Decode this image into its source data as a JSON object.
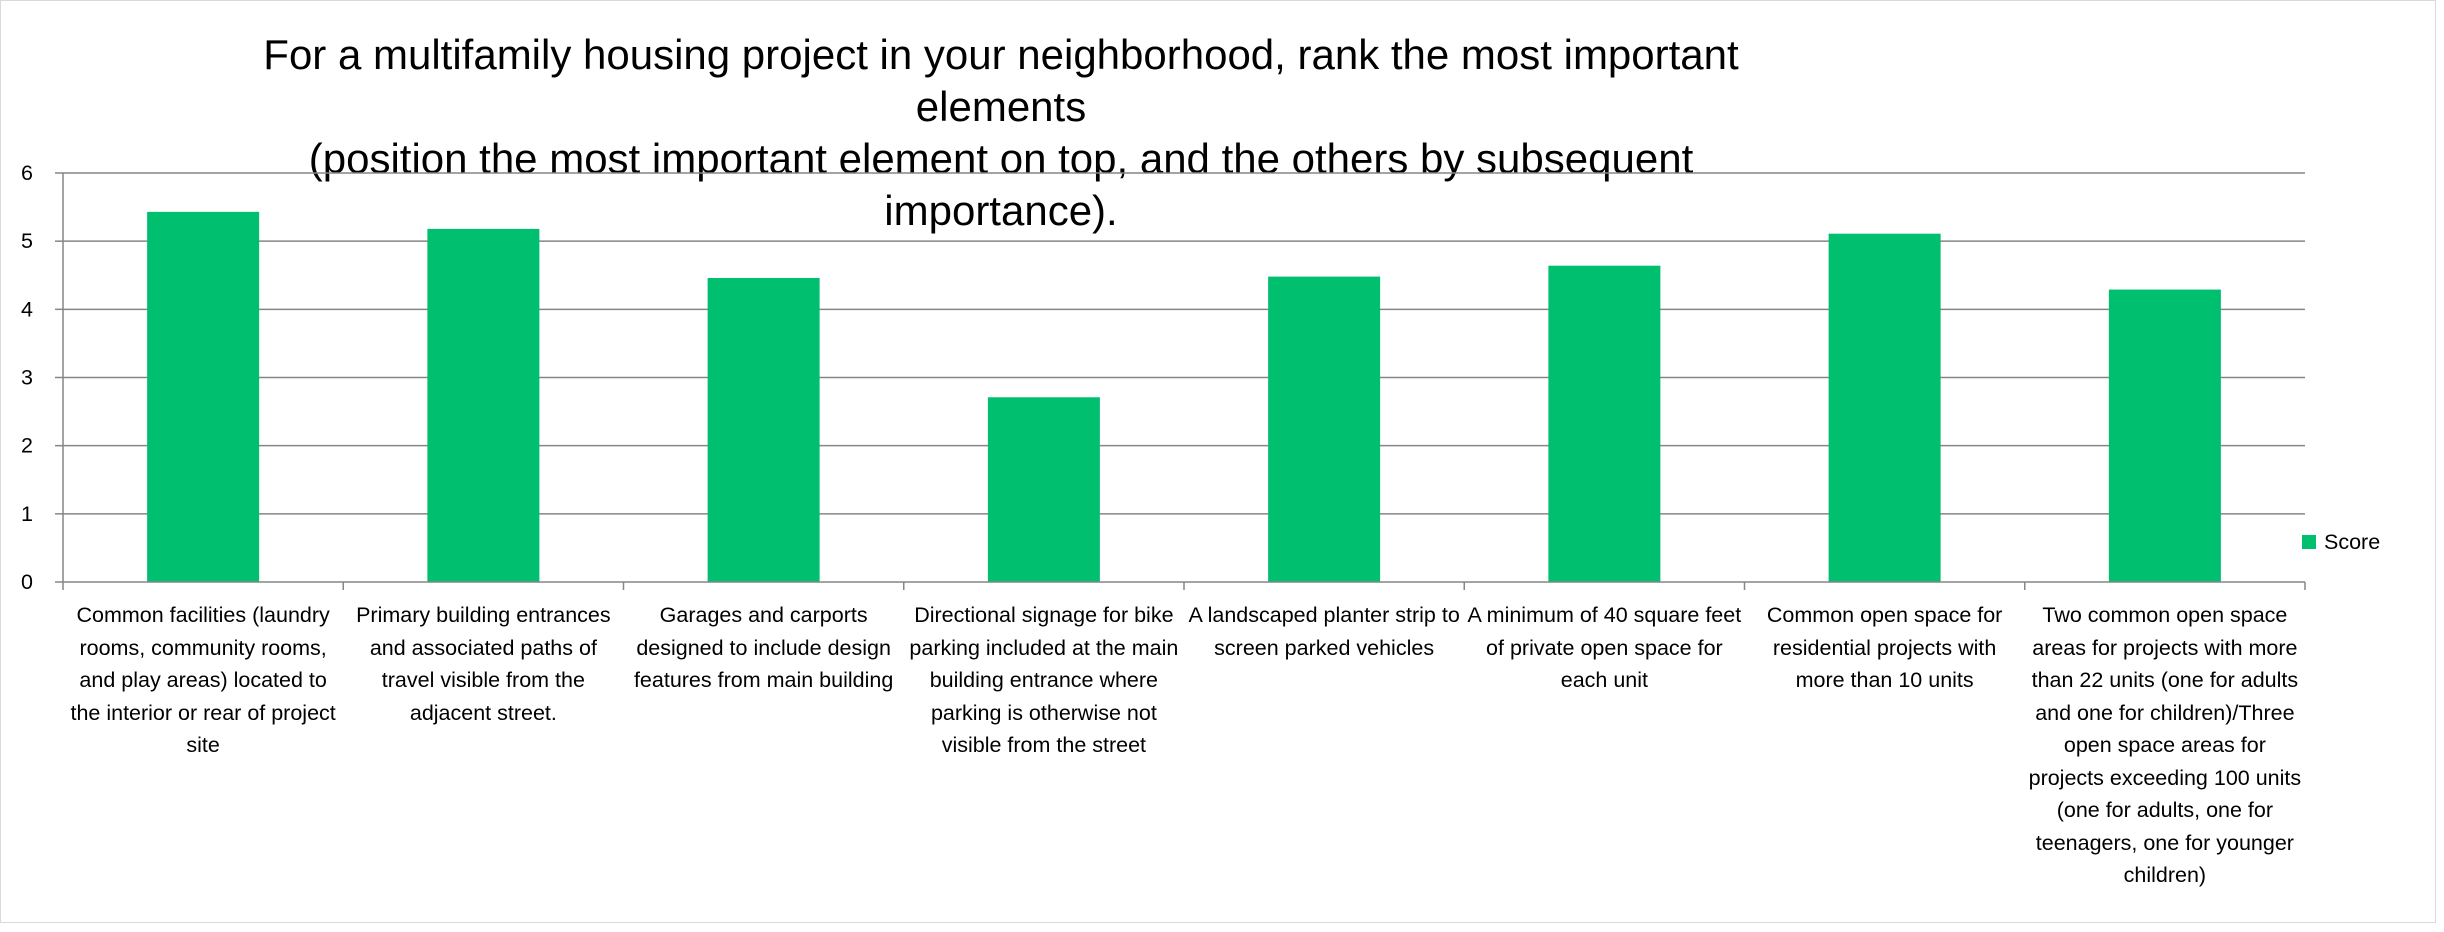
{
  "chart_data": {
    "type": "bar",
    "title_lines": [
      "For a multifamily housing project in your neighborhood, rank the most important elements",
      "(position the most important element on top, and the others by subsequent importance)."
    ],
    "xlabel": "",
    "ylabel": "",
    "ylim": [
      0,
      6
    ],
    "yticks": [
      "0",
      "1",
      "2",
      "3",
      "4",
      "5",
      "6"
    ],
    "grid": true,
    "legend_position": "right",
    "bar_color": "#00bf6f",
    "categories": [
      "Common facilities (laundry rooms, community rooms, and play areas) located to the interior or rear of project site",
      "Primary building entrances and associated paths of travel visible from the adjacent street.",
      "Garages and carports designed to include design features from main building",
      "Directional signage for bike parking included at the main building entrance where parking is otherwise not visible from the street",
      "A landscaped planter strip to screen parked vehicles",
      "A minimum of 40 square feet of private open space for each unit",
      "Common open space for residential projects with more than 10 units",
      "Two common open space areas for projects with more than 22 units (one for adults and one for children)/Three open space areas for projects exceeding 100 units (one for adults, one for teenagers, one for younger children)"
    ],
    "series": [
      {
        "name": "Score",
        "values": [
          5.43,
          5.18,
          4.46,
          2.71,
          4.48,
          4.64,
          5.11,
          4.29
        ]
      }
    ]
  }
}
